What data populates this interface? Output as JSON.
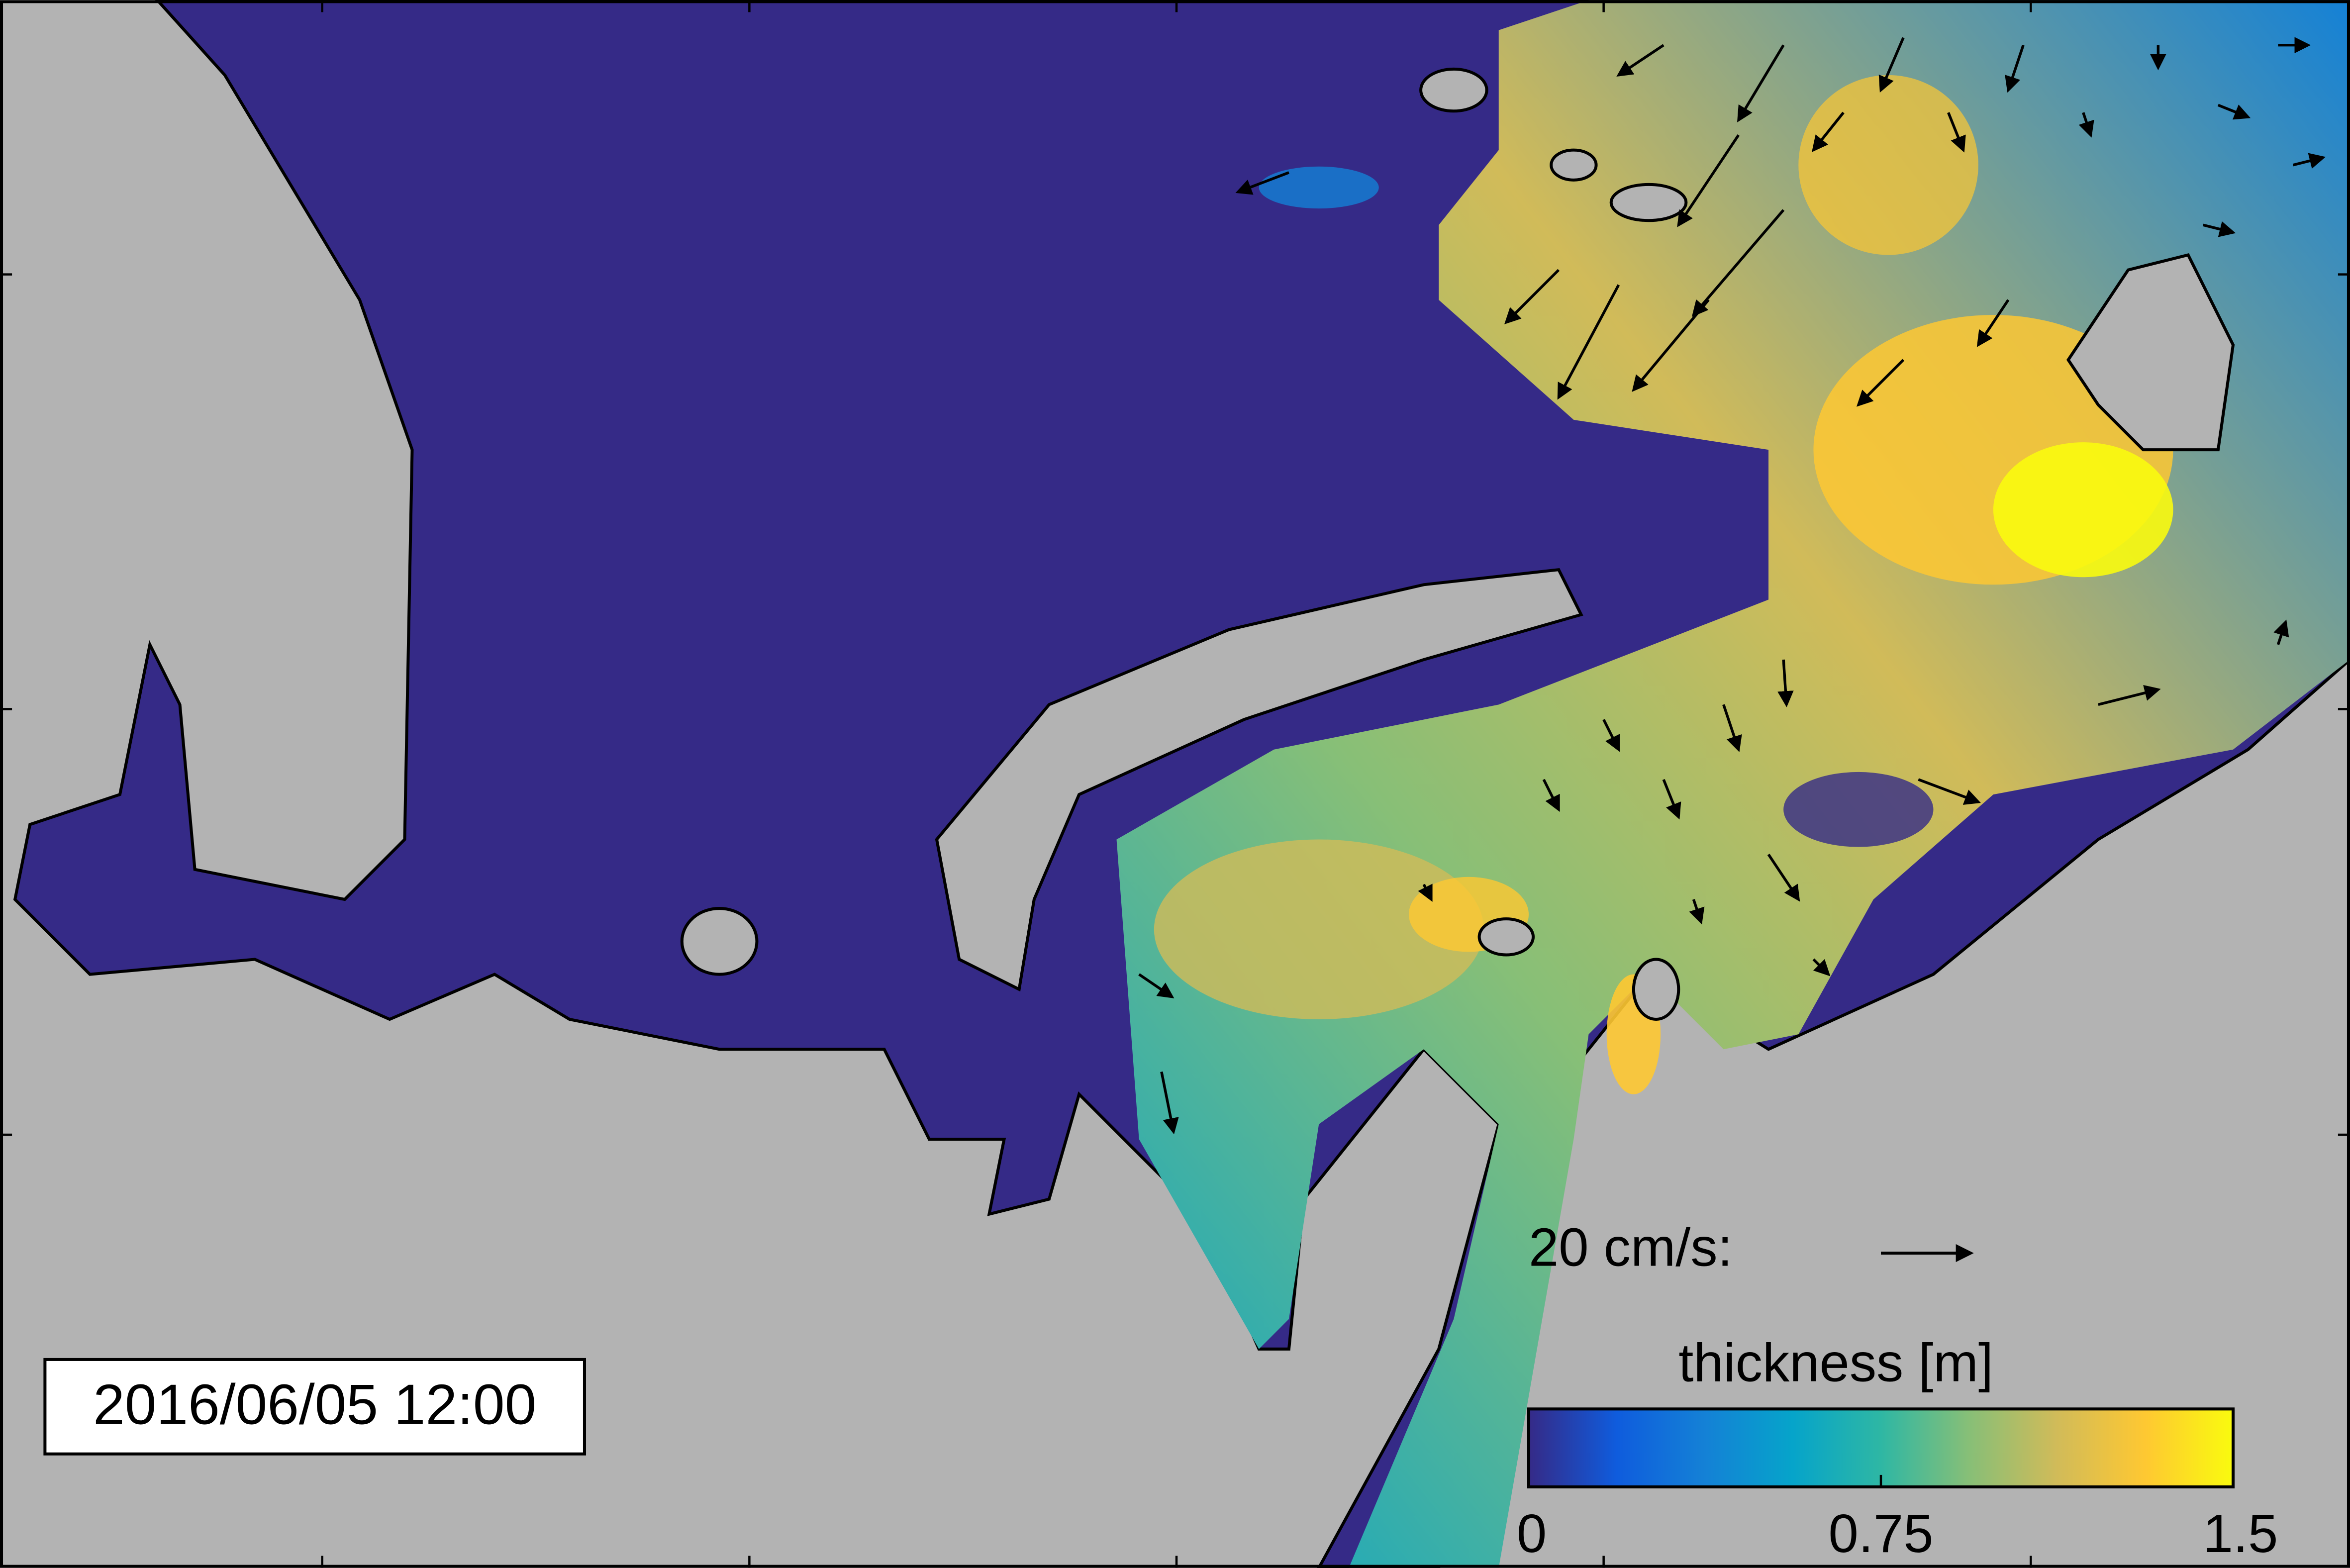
{
  "timestamp": "2016/06/05 12:00",
  "scale_label": "20 cm/s:",
  "colorbar": {
    "title": "thickness [m]",
    "range": [
      0,
      1.5
    ],
    "ticks": [
      0,
      0.75,
      1.5
    ],
    "colors": [
      "#352a87",
      "#0f5cdd",
      "#1481d6",
      "#06a4ca",
      "#2eb7a4",
      "#87bf77",
      "#d1bb59",
      "#fec832",
      "#f9fb0e"
    ]
  }
}
